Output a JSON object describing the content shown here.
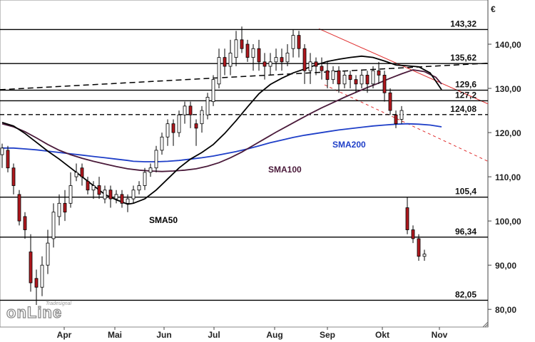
{
  "chart_data": {
    "type": "candlestick",
    "currency_label": "€",
    "y_range": [
      76,
      150
    ],
    "y_ticks": [
      {
        "value": 80,
        "label": "80,00"
      },
      {
        "value": 90,
        "label": "90,00"
      },
      {
        "value": 100,
        "label": "100,00"
      },
      {
        "value": 110,
        "label": "110,00"
      },
      {
        "value": 120,
        "label": "120,00"
      },
      {
        "value": 130,
        "label": "130,00"
      },
      {
        "value": 140,
        "label": "140,00"
      }
    ],
    "x_labels": [
      "Apr",
      "Mai",
      "Jun",
      "Jul",
      "Aug",
      "Sep",
      "Okt",
      "Nov"
    ],
    "levels": [
      {
        "value": 143.32,
        "label": "143,32",
        "style": "solid"
      },
      {
        "value": 135.62,
        "label": "135,62",
        "style": "solid"
      },
      {
        "value": 129.6,
        "label": "129,6",
        "style": "solid"
      },
      {
        "value": 127.2,
        "label": "127,2",
        "style": "solid"
      },
      {
        "value": 124.08,
        "label": "124,08",
        "style": "dashed"
      },
      {
        "value": 105.4,
        "label": "105,4",
        "style": "solid"
      },
      {
        "value": 96.34,
        "label": "96,34",
        "style": "solid"
      },
      {
        "value": 82.05,
        "label": "82,05",
        "style": "solid"
      }
    ],
    "sma_labels": [
      {
        "name": "SMA50",
        "color": "#000000"
      },
      {
        "name": "SMA100",
        "color": "#4a1a3a"
      },
      {
        "name": "SMA200",
        "color": "#1f3fc8"
      }
    ],
    "sma200": [
      [
        0,
        116.5
      ],
      [
        2,
        116.5
      ],
      [
        4,
        116.3
      ],
      [
        6,
        116.1
      ],
      [
        8,
        115.8
      ],
      [
        10,
        115.5
      ],
      [
        12,
        115.2
      ],
      [
        14,
        114.9
      ],
      [
        16,
        114.6
      ],
      [
        18,
        114.3
      ],
      [
        20,
        114.0
      ],
      [
        22,
        113.7
      ],
      [
        23,
        113.5
      ],
      [
        25,
        113.4
      ],
      [
        27,
        113.4
      ],
      [
        29,
        113.5
      ],
      [
        31,
        113.7
      ],
      [
        33,
        114.0
      ],
      [
        35,
        114.3
      ],
      [
        37,
        114.7
      ],
      [
        39,
        115.2
      ],
      [
        41,
        115.7
      ],
      [
        43,
        116.3
      ],
      [
        45,
        117.0
      ],
      [
        47,
        117.7
      ],
      [
        49,
        118.3
      ],
      [
        51,
        118.9
      ],
      [
        53,
        119.4
      ],
      [
        55,
        119.8
      ],
      [
        57,
        120.2
      ],
      [
        59,
        120.6
      ],
      [
        61,
        120.9
      ],
      [
        63,
        121.2
      ],
      [
        65,
        121.5
      ],
      [
        67,
        121.7
      ],
      [
        69,
        121.9
      ],
      [
        71,
        122.0
      ],
      [
        73,
        121.9
      ],
      [
        75,
        121.7
      ],
      [
        77,
        121.3
      ]
    ],
    "sma100": [
      [
        0,
        122.0
      ],
      [
        2,
        121.3
      ],
      [
        4,
        120.2
      ],
      [
        6,
        118.8
      ],
      [
        8,
        117.3
      ],
      [
        10,
        116.0
      ],
      [
        12,
        115.0
      ],
      [
        14,
        114.2
      ],
      [
        16,
        113.5
      ],
      [
        18,
        112.9
      ],
      [
        20,
        112.3
      ],
      [
        22,
        111.8
      ],
      [
        24,
        111.5
      ],
      [
        26,
        111.3
      ],
      [
        28,
        111.2
      ],
      [
        30,
        111.3
      ],
      [
        32,
        111.5
      ],
      [
        34,
        111.8
      ],
      [
        36,
        112.4
      ],
      [
        38,
        113.2
      ],
      [
        40,
        114.3
      ],
      [
        42,
        115.6
      ],
      [
        44,
        117.1
      ],
      [
        46,
        118.6
      ],
      [
        48,
        120.1
      ],
      [
        50,
        121.5
      ],
      [
        52,
        122.9
      ],
      [
        54,
        124.3
      ],
      [
        56,
        125.6
      ],
      [
        58,
        126.8
      ],
      [
        60,
        128.0
      ],
      [
        62,
        129.1
      ],
      [
        64,
        130.2
      ],
      [
        66,
        131.2
      ],
      [
        68,
        132.3
      ],
      [
        70,
        133.3
      ],
      [
        72,
        134.2
      ],
      [
        74,
        133.8
      ],
      [
        76,
        132.5
      ],
      [
        77,
        131.0
      ]
    ],
    "sma50": [
      [
        0,
        122.3
      ],
      [
        2,
        121.5
      ],
      [
        4,
        119.8
      ],
      [
        6,
        117.8
      ],
      [
        8,
        115.8
      ],
      [
        10,
        114.0
      ],
      [
        12,
        112.0
      ],
      [
        14,
        110.0
      ],
      [
        16,
        108.0
      ],
      [
        18,
        106.0
      ],
      [
        20,
        104.8
      ],
      [
        22,
        103.8
      ],
      [
        23,
        104.0
      ],
      [
        25,
        105.0
      ],
      [
        27,
        107.0
      ],
      [
        29,
        109.5
      ],
      [
        31,
        112.0
      ],
      [
        33,
        114.0
      ],
      [
        35,
        115.5
      ],
      [
        37,
        117.3
      ],
      [
        39,
        119.8
      ],
      [
        41,
        122.7
      ],
      [
        43,
        125.8
      ],
      [
        45,
        128.8
      ],
      [
        47,
        130.9
      ],
      [
        49,
        132.3
      ],
      [
        51,
        133.5
      ],
      [
        53,
        134.4
      ],
      [
        55,
        135.3
      ],
      [
        57,
        136.1
      ],
      [
        59,
        136.6
      ],
      [
        61,
        137.0
      ],
      [
        63,
        137.3
      ],
      [
        65,
        137.0
      ],
      [
        67,
        136.2
      ],
      [
        69,
        135.3
      ],
      [
        71,
        135.1
      ],
      [
        73,
        134.9
      ],
      [
        75,
        133.5
      ],
      [
        77,
        129.7
      ]
    ],
    "candles": [
      [
        0,
        115,
        116.5,
        112,
        117.5
      ],
      [
        1,
        116,
        112,
        111,
        117
      ],
      [
        2,
        112,
        108,
        106,
        113
      ],
      [
        3,
        106,
        100,
        99,
        107
      ],
      [
        4,
        101,
        98,
        96,
        102
      ],
      [
        5,
        93,
        86,
        84,
        97
      ],
      [
        6,
        87,
        85,
        81,
        89
      ],
      [
        7,
        85,
        90,
        83,
        92
      ],
      [
        8,
        90,
        95,
        88,
        98
      ],
      [
        9,
        96,
        102,
        94,
        104
      ],
      [
        10,
        101,
        104,
        99,
        106
      ],
      [
        11,
        104,
        102,
        100,
        107
      ],
      [
        12,
        104,
        108,
        103,
        111
      ],
      [
        13,
        110,
        111,
        109,
        113
      ],
      [
        14,
        112,
        110,
        108,
        113
      ],
      [
        15,
        109,
        107,
        106,
        110
      ],
      [
        16,
        107,
        108,
        105,
        109
      ],
      [
        17,
        108,
        106,
        105,
        110
      ],
      [
        18,
        105,
        107,
        104,
        108
      ],
      [
        19,
        107,
        105,
        103,
        108
      ],
      [
        20,
        105,
        106,
        104,
        107
      ],
      [
        21,
        106,
        104,
        103,
        107
      ],
      [
        22,
        104,
        105,
        102,
        106
      ],
      [
        23,
        105,
        107,
        104,
        108
      ],
      [
        24,
        107,
        108,
        106,
        109
      ],
      [
        25,
        108,
        111,
        107,
        112
      ],
      [
        26,
        111,
        112,
        110,
        113
      ],
      [
        27,
        112,
        116,
        111,
        117
      ],
      [
        28,
        116,
        119,
        115,
        120
      ],
      [
        29,
        119,
        122,
        117,
        123
      ],
      [
        30,
        122,
        120,
        117,
        123
      ],
      [
        31,
        120,
        124,
        119,
        125
      ],
      [
        32,
        124,
        126,
        122,
        127
      ],
      [
        33,
        126,
        124,
        121,
        127
      ],
      [
        34,
        122,
        121,
        117,
        123
      ],
      [
        35,
        122,
        125,
        120,
        126
      ],
      [
        36,
        124,
        128,
        123,
        129
      ],
      [
        37,
        127,
        132,
        126,
        133
      ],
      [
        38,
        131,
        137,
        130,
        139
      ],
      [
        39,
        137,
        135,
        133,
        139
      ],
      [
        40,
        135,
        138,
        133,
        141
      ],
      [
        41,
        137,
        141,
        135,
        143
      ],
      [
        42,
        141,
        139,
        138,
        144
      ],
      [
        43,
        140,
        137,
        136,
        141
      ],
      [
        44,
        137,
        139,
        134,
        140
      ],
      [
        45,
        139,
        136,
        134,
        141
      ],
      [
        46,
        136,
        135,
        132,
        138
      ],
      [
        47,
        135,
        136,
        133,
        138
      ],
      [
        48,
        136,
        137,
        134,
        139
      ],
      [
        49,
        137,
        136,
        134,
        139
      ],
      [
        50,
        136,
        138,
        135,
        140
      ],
      [
        51,
        139,
        142,
        137,
        143.3
      ],
      [
        52,
        142,
        139,
        137,
        143
      ],
      [
        53,
        139,
        134,
        131,
        140
      ],
      [
        54,
        134,
        136,
        131,
        138
      ],
      [
        55,
        136,
        135,
        133,
        137
      ],
      [
        56,
        135,
        134,
        132,
        137
      ],
      [
        57,
        134,
        132,
        130,
        136
      ],
      [
        58,
        132,
        134,
        131,
        135
      ],
      [
        59,
        134,
        131,
        129,
        135
      ],
      [
        60,
        131,
        133,
        130,
        134
      ],
      [
        61,
        133,
        132,
        130,
        134
      ],
      [
        62,
        132,
        131,
        129,
        133
      ],
      [
        63,
        131,
        133,
        130,
        134
      ],
      [
        64,
        133,
        131,
        129,
        134
      ],
      [
        65,
        131,
        134,
        130,
        135
      ],
      [
        66,
        134,
        133,
        131,
        136
      ],
      [
        67,
        133,
        129,
        127,
        134
      ],
      [
        68,
        129,
        125,
        124,
        130
      ],
      [
        69,
        124,
        122,
        121,
        125
      ],
      [
        70,
        123,
        125,
        122,
        126
      ],
      [
        71,
        103,
        98,
        97,
        105.4
      ],
      [
        72,
        98,
        96,
        95,
        99
      ],
      [
        73,
        96,
        92,
        91,
        97
      ],
      [
        74,
        92,
        92.5,
        91,
        93.5
      ]
    ]
  },
  "watermark": {
    "small": "Tradesignal",
    "brand": "onLine"
  }
}
